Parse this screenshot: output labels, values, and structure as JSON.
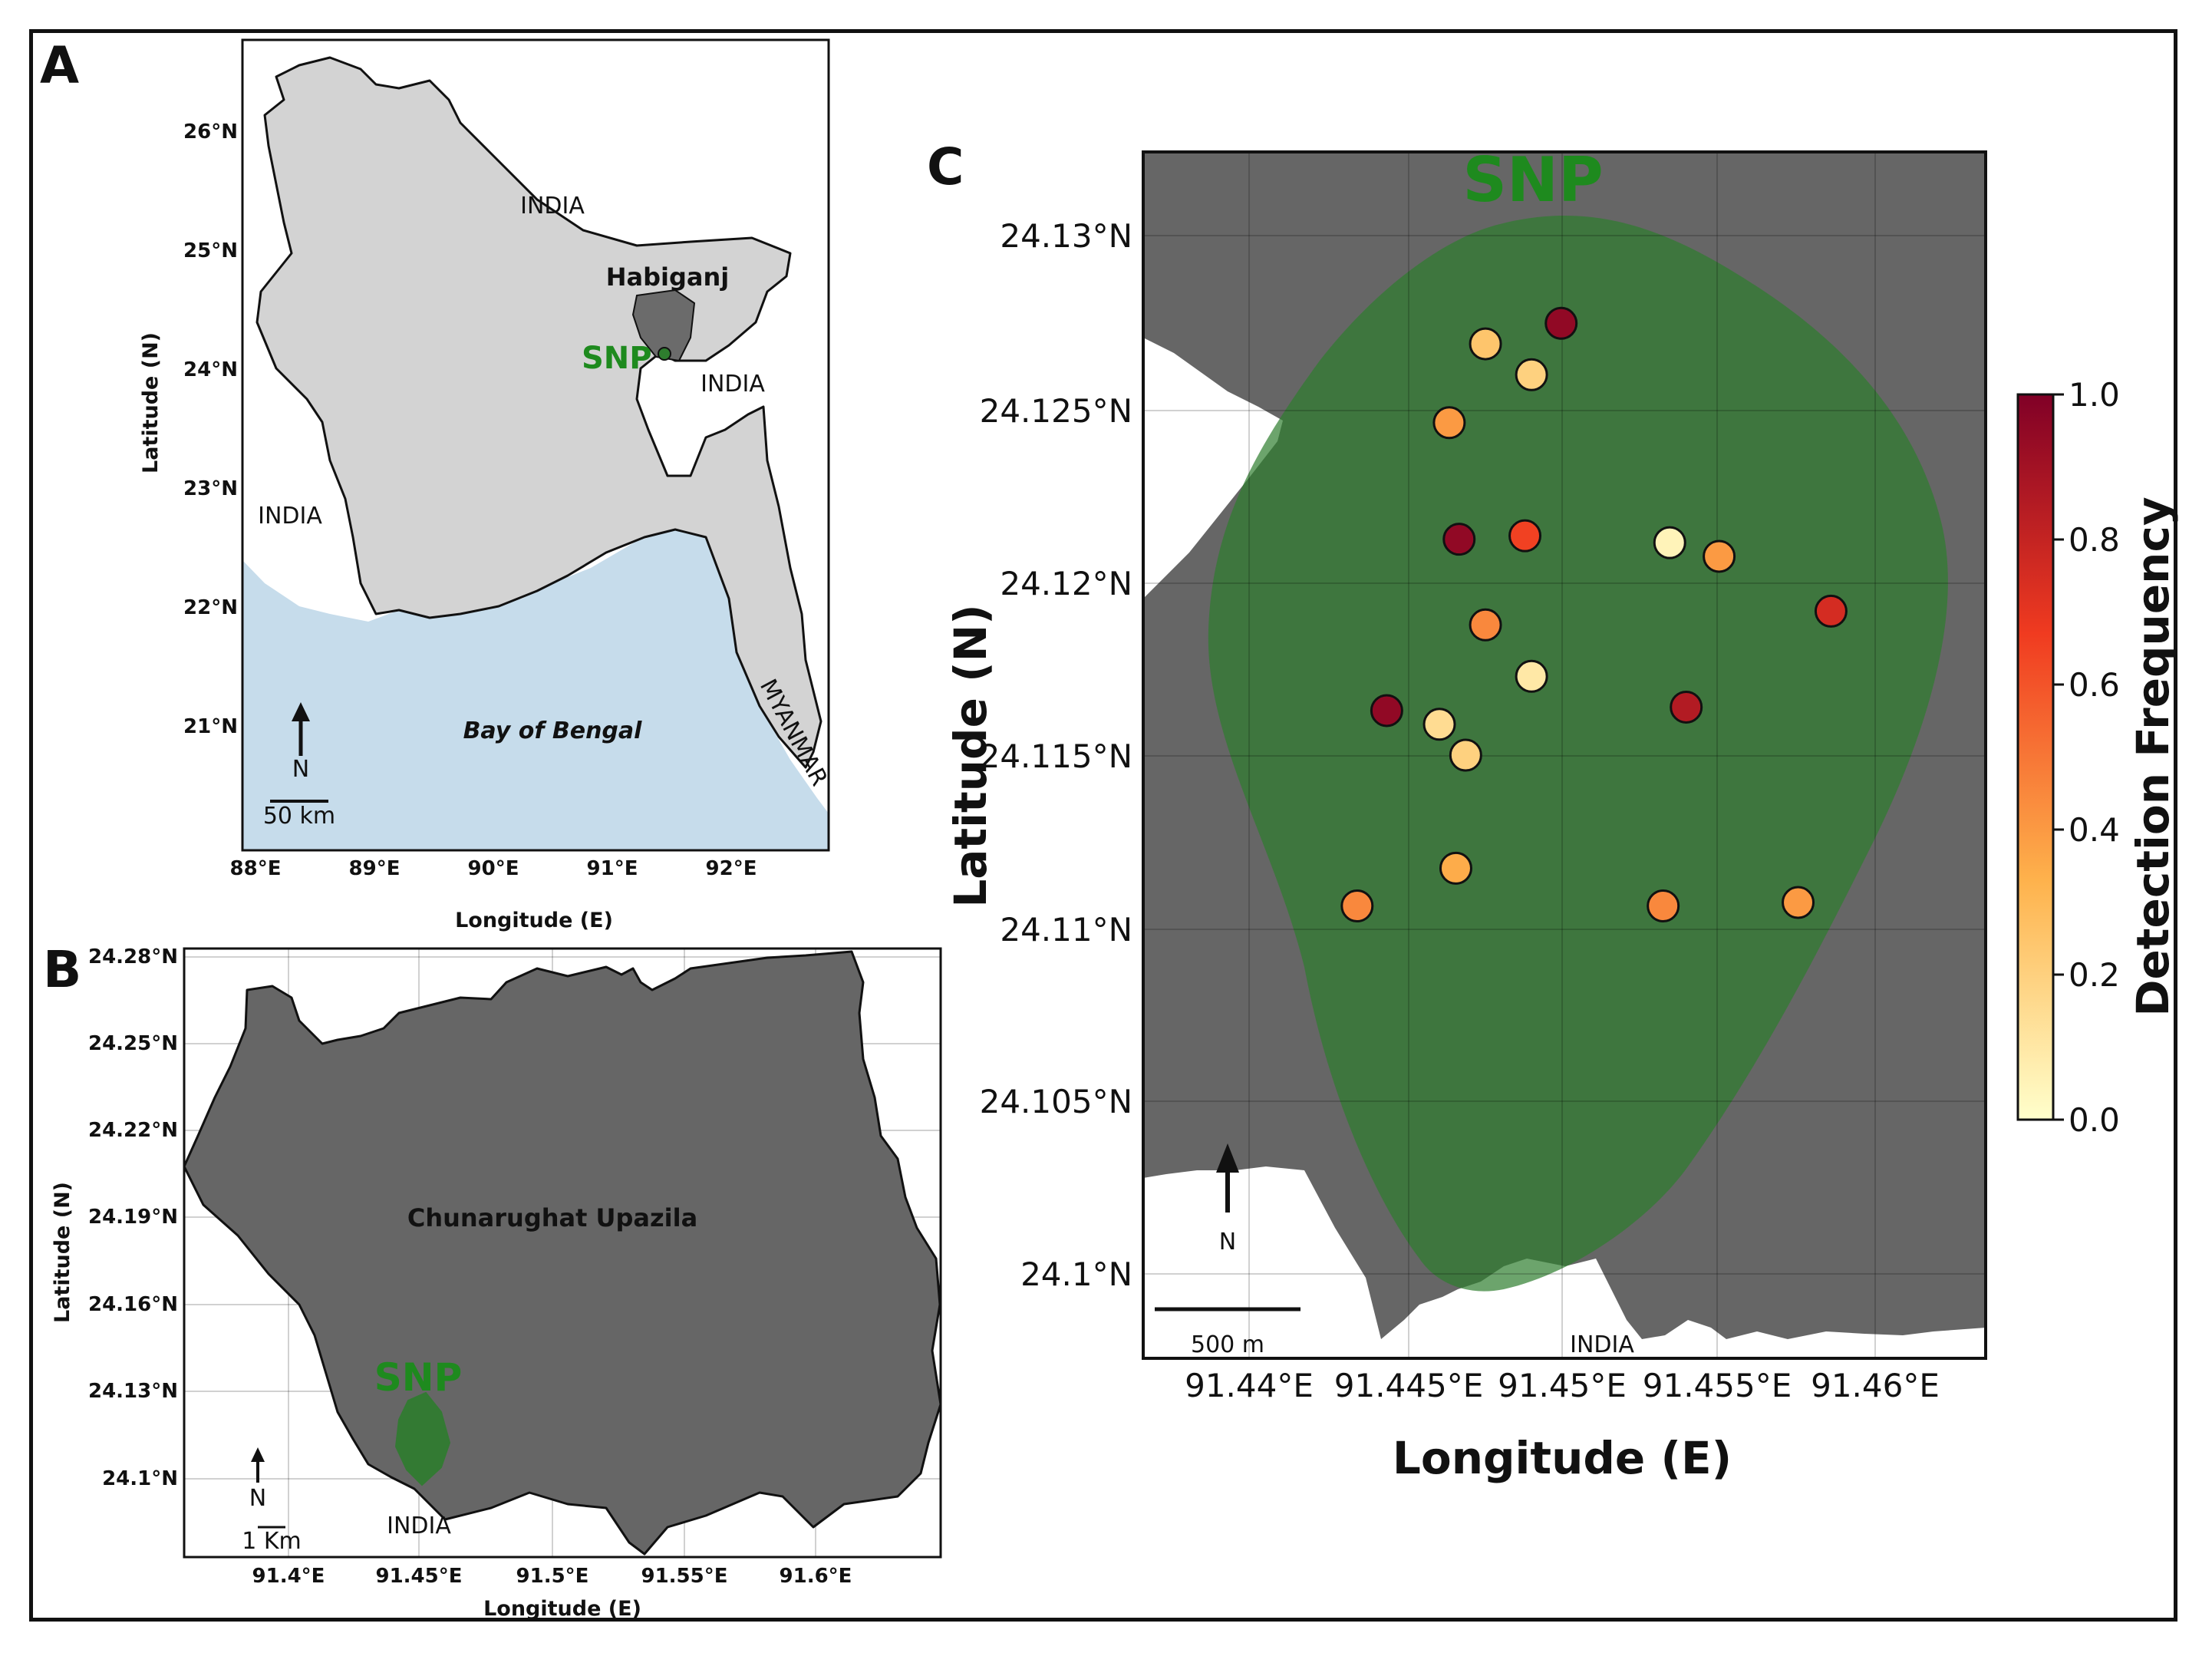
{
  "colors": {
    "land": "#d3d3d3",
    "sea": "#c6dceb",
    "district": "#6b6b6b",
    "upazila": "#666666",
    "snp_green": "#2e7d2e",
    "snp_text": "#1e8a1e",
    "india_white": "#ffffff",
    "colormap": [
      "#ffffcc",
      "#feb24c",
      "#f03b20",
      "#800026"
    ]
  },
  "panel_a": {
    "letter": "A",
    "xlabel": "Longitude (E)",
    "ylabel": "Latitude (N)",
    "xticks": [
      "88°E",
      "89°E",
      "90°E",
      "91°E",
      "92°E"
    ],
    "yticks": [
      "26°N",
      "25°N",
      "24°N",
      "23°N",
      "22°N",
      "21°N"
    ],
    "labels": {
      "india_north": "INDIA",
      "india_west": "INDIA",
      "india_east": "INDIA",
      "myanmar": "MYANMAR",
      "habiganj": "Habiganj",
      "snp": "SNP",
      "bay": "Bay of Bengal",
      "north": "N",
      "scale": "50 km"
    }
  },
  "panel_b": {
    "letter": "B",
    "xlabel": "Longitude (E)",
    "ylabel": "Latitude (N)",
    "xticks": [
      "91.4°E",
      "91.45°E",
      "91.5°E",
      "91.55°E",
      "91.6°E"
    ],
    "yticks": [
      "24.28°N",
      "24.25°N",
      "24.22°N",
      "24.19°N",
      "24.16°N",
      "24.13°N",
      "24.1°N"
    ],
    "labels": {
      "upazila": "Chunarughat Upazila",
      "snp": "SNP",
      "india": "INDIA",
      "north": "N",
      "scale": "1 Km"
    }
  },
  "panel_c": {
    "letter": "C",
    "xlabel": "Longitude (E)",
    "ylabel": "Latitude (N)",
    "xticks": [
      "91.44°E",
      "91.445°E",
      "91.45°E",
      "91.455°E",
      "91.46°E"
    ],
    "yticks": [
      "24.13°N",
      "24.125°N",
      "24.12°N",
      "24.115°N",
      "24.11°N",
      "24.105°N",
      "24.1°N"
    ],
    "labels": {
      "snp": "SNP",
      "india": "INDIA",
      "north": "N",
      "scale": "500 m"
    },
    "colorbar": {
      "label": "Detection Frequency",
      "ticks": [
        "1.0",
        "0.8",
        "0.6",
        "0.4",
        "0.2",
        "0.0"
      ]
    }
  },
  "chart_data": {
    "type": "scatter",
    "xlabel": "Longitude (E)",
    "ylabel": "Latitude (N)",
    "xlim": [
      91.4359,
      91.4615
    ],
    "ylim": [
      24.0975,
      24.1327
    ],
    "color_variable": "Detection Frequency",
    "color_range": [
      0.0,
      1.0
    ],
    "points": [
      {
        "lon": 91.4463,
        "lat": 24.1271,
        "freq": 0.25
      },
      {
        "lon": 91.4486,
        "lat": 24.1277,
        "freq": 0.95
      },
      {
        "lon": 91.4477,
        "lat": 24.1262,
        "freq": 0.2
      },
      {
        "lon": 91.4452,
        "lat": 24.1248,
        "freq": 0.4
      },
      {
        "lon": 91.4455,
        "lat": 24.1214,
        "freq": 0.95
      },
      {
        "lon": 91.4475,
        "lat": 24.1215,
        "freq": 0.65
      },
      {
        "lon": 91.4519,
        "lat": 24.1213,
        "freq": 0.05
      },
      {
        "lon": 91.4534,
        "lat": 24.1209,
        "freq": 0.4
      },
      {
        "lon": 91.4568,
        "lat": 24.1193,
        "freq": 0.75
      },
      {
        "lon": 91.4463,
        "lat": 24.1189,
        "freq": 0.45
      },
      {
        "lon": 91.4477,
        "lat": 24.1174,
        "freq": 0.1
      },
      {
        "lon": 91.4433,
        "lat": 24.1164,
        "freq": 0.95
      },
      {
        "lon": 91.4449,
        "lat": 24.116,
        "freq": 0.15
      },
      {
        "lon": 91.4457,
        "lat": 24.1151,
        "freq": 0.2
      },
      {
        "lon": 91.4524,
        "lat": 24.1165,
        "freq": 0.85
      },
      {
        "lon": 91.4454,
        "lat": 24.1118,
        "freq": 0.35
      },
      {
        "lon": 91.4424,
        "lat": 24.1107,
        "freq": 0.45
      },
      {
        "lon": 91.4517,
        "lat": 24.1107,
        "freq": 0.45
      },
      {
        "lon": 91.4558,
        "lat": 24.1108,
        "freq": 0.4
      }
    ]
  }
}
